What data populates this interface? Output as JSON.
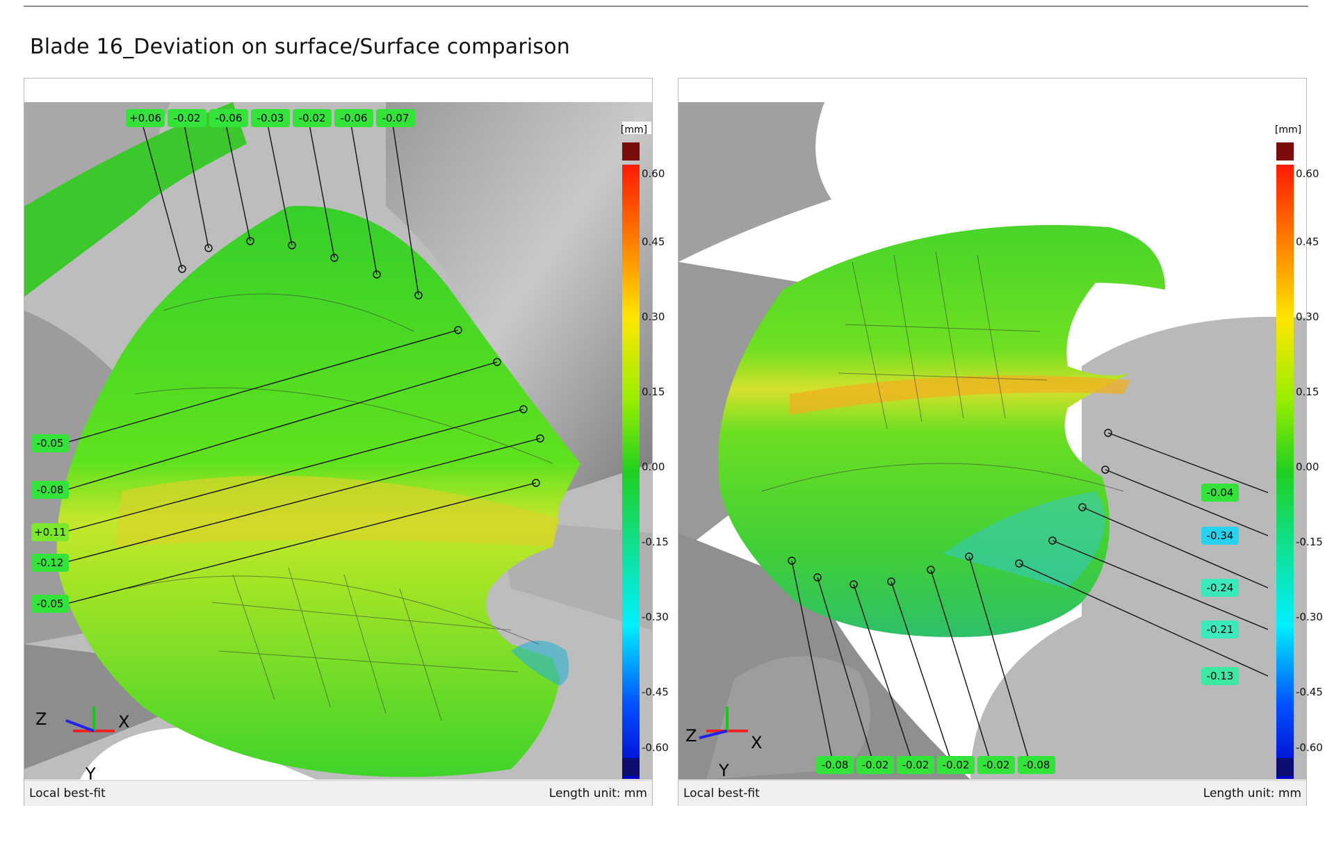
{
  "title": "Blade 16_Deviation on surface/Surface comparison",
  "scale": {
    "unit": "[mm]",
    "ticks": [
      "0.60",
      "0.45",
      "0.30",
      "0.15",
      "0.00",
      "-0.15",
      "-0.30",
      "-0.45",
      "-0.60"
    ],
    "colors": {
      "top_overflow": "#7a0c0c",
      "bottom_overflow": "#0b0e6e"
    }
  },
  "axes": {
    "x": "X",
    "y": "Y",
    "z": "Z"
  },
  "panels": [
    {
      "footer_left": "Local best-fit",
      "footer_right": "Length unit: mm",
      "labels": [
        "+0.06",
        "-0.02",
        "-0.06",
        "-0.03",
        "-0.02",
        "-0.06",
        "-0.07",
        "-0.05",
        "-0.08",
        "+0.11",
        "-0.12",
        "-0.05"
      ]
    },
    {
      "footer_left": "Local best-fit",
      "footer_right": "Length unit: mm",
      "labels": [
        "-0.04",
        "-0.34",
        "-0.24",
        "-0.21",
        "-0.13",
        "-0.08",
        "-0.02",
        "-0.02",
        "-0.02",
        "-0.02",
        "-0.08"
      ]
    }
  ],
  "label_colors": {
    "green": "#33e33a",
    "cyan": "#27d2ee",
    "aqua": "#3be9bd",
    "lime": "#7be82c"
  }
}
